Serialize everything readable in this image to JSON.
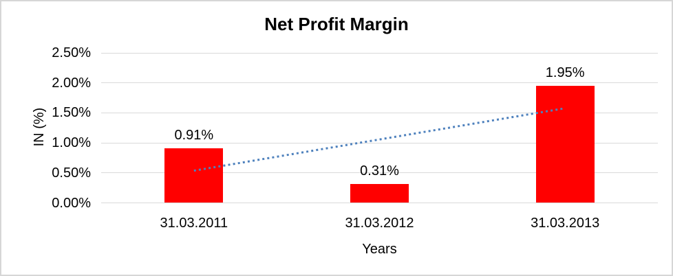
{
  "window": {
    "background_color": "#ffffff",
    "border_color": "#d6d6d6"
  },
  "chart_data": {
    "type": "bar",
    "title": "Net Profit Margin",
    "xlabel": "Years",
    "ylabel": "IN (%)",
    "categories": [
      "31.03.2011",
      "31.03.2012",
      "31.03.2013"
    ],
    "values": [
      0.91,
      0.31,
      1.95
    ],
    "data_labels": [
      "0.91%",
      "0.31%",
      "1.95%"
    ],
    "y_tick_labels": [
      "0.00%",
      "0.50%",
      "1.00%",
      "1.50%",
      "2.00%",
      "2.50%"
    ],
    "y_tick_values": [
      0,
      0.5,
      1.0,
      1.5,
      2.0,
      2.5
    ],
    "ylim": [
      0,
      2.5
    ],
    "grid": true,
    "legend": "none",
    "bar_color": "#ff0000",
    "gridline_color": "#d9d9d9",
    "text_color": "#000000",
    "trendline": {
      "type": "linear",
      "style": "dotted",
      "color": "#4e81bd",
      "start": {
        "category_index": 0,
        "value": 0.537
      },
      "end": {
        "category_index": 2,
        "value": 1.577
      }
    }
  }
}
